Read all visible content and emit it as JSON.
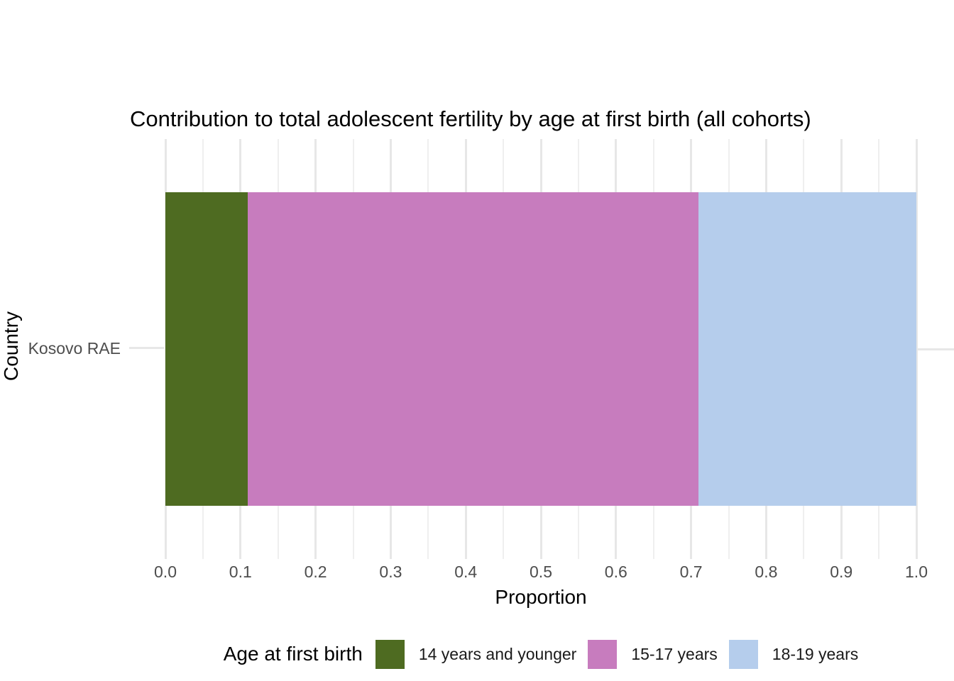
{
  "title": "Contribution to total adolescent fertility by age at first birth (all cohorts)",
  "axes": {
    "x_label": "Proportion",
    "y_label": "Country",
    "x_ticks": [
      "0.0",
      "0.1",
      "0.2",
      "0.3",
      "0.4",
      "0.5",
      "0.6",
      "0.7",
      "0.8",
      "0.9",
      "1.0"
    ],
    "y_ticks": [
      "Kosovo RAE"
    ]
  },
  "legend": {
    "title": "Age at first birth",
    "items": [
      {
        "label": "14 years and younger",
        "color": "#4e6b21"
      },
      {
        "label": "15-17 years",
        "color": "#c77cbe"
      },
      {
        "label": "18-19 years",
        "color": "#b5cdec"
      }
    ]
  },
  "colors": {
    "grid_major": "#e7e7e7",
    "grid_minor": "#efefef",
    "tick_text": "#4d4d4d",
    "text": "#000000",
    "background": "#ffffff"
  },
  "chart_data": {
    "type": "bar",
    "orientation": "horizontal",
    "stacked": true,
    "title": "Contribution to total adolescent fertility by age at first birth (all cohorts)",
    "xlabel": "Proportion",
    "ylabel": "Country",
    "categories": [
      "Kosovo RAE"
    ],
    "series": [
      {
        "name": "14 years and younger",
        "values": [
          0.11
        ],
        "color": "#4e6b21"
      },
      {
        "name": "15-17 years",
        "values": [
          0.6
        ],
        "color": "#c77cbe"
      },
      {
        "name": "18-19 years",
        "values": [
          0.29
        ],
        "color": "#b5cdec"
      }
    ],
    "xlim": [
      0,
      1
    ],
    "x_tick_step": 0.1,
    "minor_gridlines": true,
    "grid": "vertical",
    "legend_position": "bottom"
  }
}
